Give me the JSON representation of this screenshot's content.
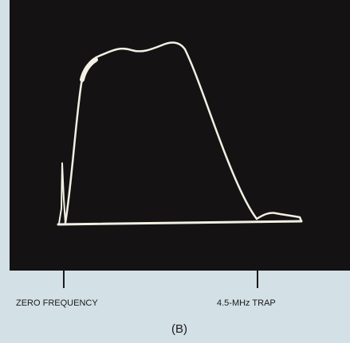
{
  "labels": {
    "left": "ZERO FREQUENCY",
    "right": "4.5-MHz TRAP"
  },
  "caption": "(B)"
}
